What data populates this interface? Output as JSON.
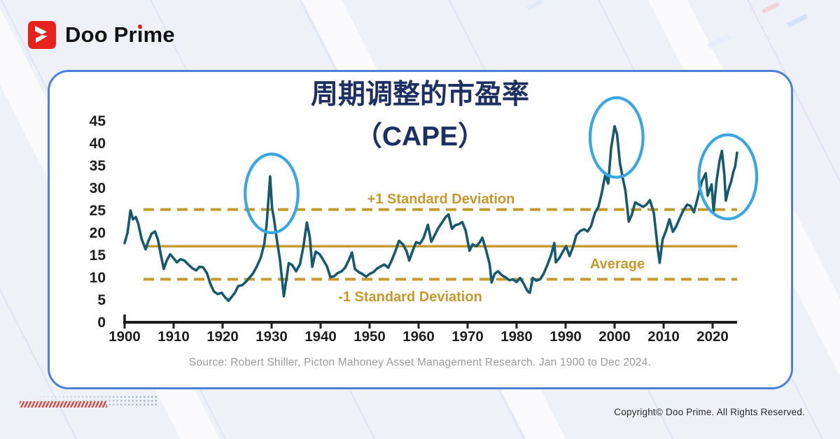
{
  "logo": {
    "brand_before_i": "Doo Pr",
    "brand_i": "i",
    "brand_after_i": "me",
    "brand_full": "Doo Prime"
  },
  "page": {
    "copyright": "Copyright© Doo Prime. All Rights Reserved."
  },
  "chart_data": {
    "type": "line",
    "title_line1": "周期调整的市盈率",
    "title_line2": "（CAPE）",
    "source": "Source: Robert Shiller, Picton Mahoney Asset Management Research. Jan 1900 to Dec 2024.",
    "xlabel": "",
    "ylabel": "",
    "xlim": [
      1900,
      2026
    ],
    "ylim": [
      0,
      45
    ],
    "grid": false,
    "legend": "none",
    "x_ticks": [
      1900,
      1910,
      1920,
      1930,
      1940,
      1950,
      1960,
      1970,
      1980,
      1990,
      2000,
      2010,
      2020
    ],
    "y_ticks": [
      0,
      5,
      10,
      15,
      20,
      25,
      30,
      35,
      40,
      45
    ],
    "bands": {
      "plus1": {
        "value": 25.2,
        "label": "+1 Standard Deviation",
        "style": "dashed"
      },
      "average": {
        "value": 17.0,
        "label": "Average",
        "style": "solid"
      },
      "minus1": {
        "value": 9.6,
        "label": "-1 Standard Deviation",
        "style": "dashed"
      }
    },
    "series": [
      {
        "name": "CAPE",
        "points": [
          [
            1900,
            17.7
          ],
          [
            1900.6,
            20.0
          ],
          [
            1901.2,
            25.0
          ],
          [
            1901.7,
            23.0
          ],
          [
            1902.3,
            23.5
          ],
          [
            1902.8,
            22.0
          ],
          [
            1903.5,
            18.5
          ],
          [
            1904.3,
            16.3
          ],
          [
            1904.8,
            18.0
          ],
          [
            1905.5,
            19.8
          ],
          [
            1906.2,
            20.3
          ],
          [
            1906.8,
            18.5
          ],
          [
            1907.5,
            14.5
          ],
          [
            1908.0,
            11.9
          ],
          [
            1908.6,
            13.8
          ],
          [
            1909.3,
            15.2
          ],
          [
            1910.0,
            14.3
          ],
          [
            1910.7,
            13.4
          ],
          [
            1911.4,
            14.1
          ],
          [
            1912.2,
            13.8
          ],
          [
            1913.0,
            12.9
          ],
          [
            1913.8,
            12.1
          ],
          [
            1914.6,
            11.6
          ],
          [
            1915.3,
            12.4
          ],
          [
            1916.0,
            12.3
          ],
          [
            1916.8,
            11.0
          ],
          [
            1917.5,
            8.6
          ],
          [
            1918.2,
            6.9
          ],
          [
            1919.0,
            6.3
          ],
          [
            1919.8,
            6.6
          ],
          [
            1920.5,
            5.6
          ],
          [
            1921.2,
            4.8
          ],
          [
            1921.8,
            5.6
          ],
          [
            1922.5,
            6.6
          ],
          [
            1923.2,
            8.1
          ],
          [
            1924.0,
            8.3
          ],
          [
            1924.8,
            9.1
          ],
          [
            1925.5,
            10.0
          ],
          [
            1926.2,
            10.9
          ],
          [
            1927.0,
            12.5
          ],
          [
            1927.8,
            14.5
          ],
          [
            1928.5,
            17.5
          ],
          [
            1929.0,
            22.0
          ],
          [
            1929.7,
            32.6
          ],
          [
            1930.1,
            25.5
          ],
          [
            1930.5,
            23.0
          ],
          [
            1931.0,
            19.0
          ],
          [
            1931.7,
            14.0
          ],
          [
            1932.5,
            5.8
          ],
          [
            1933.0,
            9.5
          ],
          [
            1933.5,
            13.2
          ],
          [
            1934.2,
            12.8
          ],
          [
            1935.0,
            11.4
          ],
          [
            1935.8,
            13.0
          ],
          [
            1936.5,
            17.0
          ],
          [
            1937.2,
            22.3
          ],
          [
            1937.8,
            19.0
          ],
          [
            1938.3,
            12.4
          ],
          [
            1939.0,
            15.8
          ],
          [
            1939.8,
            15.2
          ],
          [
            1940.5,
            14.0
          ],
          [
            1941.3,
            12.5
          ],
          [
            1942.0,
            10.1
          ],
          [
            1942.8,
            10.3
          ],
          [
            1943.5,
            11.0
          ],
          [
            1944.3,
            11.4
          ],
          [
            1945.0,
            12.2
          ],
          [
            1945.8,
            14.0
          ],
          [
            1946.4,
            15.6
          ],
          [
            1947.0,
            11.9
          ],
          [
            1947.8,
            11.2
          ],
          [
            1948.5,
            10.8
          ],
          [
            1949.3,
            10.2
          ],
          [
            1950.0,
            10.8
          ],
          [
            1950.8,
            11.2
          ],
          [
            1951.5,
            12.0
          ],
          [
            1952.3,
            12.5
          ],
          [
            1953.0,
            12.9
          ],
          [
            1953.8,
            12.2
          ],
          [
            1954.5,
            13.8
          ],
          [
            1955.3,
            16.0
          ],
          [
            1956.0,
            18.2
          ],
          [
            1956.8,
            17.4
          ],
          [
            1957.5,
            16.0
          ],
          [
            1958.1,
            13.8
          ],
          [
            1958.8,
            16.0
          ],
          [
            1959.5,
            17.9
          ],
          [
            1960.3,
            17.6
          ],
          [
            1961.0,
            18.8
          ],
          [
            1961.9,
            21.8
          ],
          [
            1962.6,
            18.0
          ],
          [
            1963.3,
            19.5
          ],
          [
            1964.0,
            21.0
          ],
          [
            1964.8,
            22.3
          ],
          [
            1965.5,
            23.5
          ],
          [
            1966.1,
            24.1
          ],
          [
            1966.8,
            20.9
          ],
          [
            1967.5,
            21.7
          ],
          [
            1968.2,
            21.9
          ],
          [
            1968.9,
            22.4
          ],
          [
            1969.6,
            20.5
          ],
          [
            1970.4,
            16.0
          ],
          [
            1971.0,
            17.4
          ],
          [
            1971.8,
            17.0
          ],
          [
            1972.5,
            17.9
          ],
          [
            1973.0,
            18.9
          ],
          [
            1973.8,
            16.0
          ],
          [
            1974.5,
            13.0
          ],
          [
            1974.9,
            8.9
          ],
          [
            1975.5,
            10.8
          ],
          [
            1976.2,
            11.4
          ],
          [
            1977.0,
            10.5
          ],
          [
            1977.8,
            10.0
          ],
          [
            1978.5,
            9.4
          ],
          [
            1979.2,
            9.6
          ],
          [
            1980.0,
            9.0
          ],
          [
            1980.7,
            9.9
          ],
          [
            1981.4,
            8.7
          ],
          [
            1982.2,
            7.0
          ],
          [
            1982.7,
            6.6
          ],
          [
            1983.3,
            9.9
          ],
          [
            1984.0,
            9.3
          ],
          [
            1984.8,
            9.6
          ],
          [
            1985.5,
            10.8
          ],
          [
            1986.2,
            12.6
          ],
          [
            1987.0,
            14.9
          ],
          [
            1987.7,
            17.7
          ],
          [
            1988.0,
            13.4
          ],
          [
            1988.7,
            14.3
          ],
          [
            1989.4,
            15.7
          ],
          [
            1990.1,
            17.0
          ],
          [
            1990.8,
            14.8
          ],
          [
            1991.5,
            16.8
          ],
          [
            1992.2,
            19.5
          ],
          [
            1993.0,
            20.4
          ],
          [
            1993.8,
            20.8
          ],
          [
            1994.5,
            20.3
          ],
          [
            1995.2,
            21.5
          ],
          [
            1996.0,
            24.5
          ],
          [
            1996.7,
            25.8
          ],
          [
            1997.4,
            29.0
          ],
          [
            1998.1,
            33.0
          ],
          [
            1998.7,
            31.0
          ],
          [
            1999.3,
            39.0
          ],
          [
            2000.0,
            43.8
          ],
          [
            2000.5,
            42.0
          ],
          [
            2001.1,
            35.5
          ],
          [
            2001.8,
            31.5
          ],
          [
            2002.2,
            29.5
          ],
          [
            2002.9,
            22.5
          ],
          [
            2003.5,
            24.0
          ],
          [
            2004.2,
            26.8
          ],
          [
            2005.0,
            26.3
          ],
          [
            2005.8,
            25.8
          ],
          [
            2006.5,
            26.3
          ],
          [
            2007.2,
            27.3
          ],
          [
            2008.0,
            24.5
          ],
          [
            2008.8,
            16.5
          ],
          [
            2009.2,
            13.3
          ],
          [
            2009.8,
            18.5
          ],
          [
            2010.5,
            20.5
          ],
          [
            2011.2,
            23.0
          ],
          [
            2011.9,
            20.2
          ],
          [
            2012.6,
            21.5
          ],
          [
            2013.3,
            23.3
          ],
          [
            2014.0,
            24.9
          ],
          [
            2014.8,
            26.3
          ],
          [
            2015.5,
            26.0
          ],
          [
            2016.2,
            24.6
          ],
          [
            2017.0,
            28.0
          ],
          [
            2017.8,
            31.5
          ],
          [
            2018.6,
            33.3
          ],
          [
            2019.0,
            28.3
          ],
          [
            2019.8,
            30.8
          ],
          [
            2020.2,
            24.8
          ],
          [
            2020.8,
            31.5
          ],
          [
            2021.4,
            36.0
          ],
          [
            2021.9,
            38.3
          ],
          [
            2022.4,
            33.0
          ],
          [
            2022.7,
            27.2
          ],
          [
            2023.2,
            29.5
          ],
          [
            2023.8,
            31.5
          ],
          [
            2024.2,
            33.5
          ],
          [
            2024.6,
            34.8
          ],
          [
            2025.0,
            37.9
          ]
        ]
      }
    ],
    "highlight_ellipses": [
      {
        "year": 1930.0,
        "value": 28.8,
        "rx_years": 5.4,
        "ry_units": 8.8
      },
      {
        "year": 2000.4,
        "value": 41.3,
        "rx_years": 5.4,
        "ry_units": 8.9
      },
      {
        "year": 2023.1,
        "value": 32.5,
        "rx_years": 5.9,
        "ry_units": 9.4
      }
    ],
    "colors": {
      "line": "#17596e",
      "gold": "#c59b30",
      "gold_label": "#c9982d",
      "highlight": "#3aa7e4",
      "axis": "#1c1c1c",
      "tick_label": "#1d1d1d",
      "title": "#1e2f63",
      "source": "#9b9b9b",
      "card_border": "#4d80da",
      "brand_red": "#e8231e"
    }
  }
}
